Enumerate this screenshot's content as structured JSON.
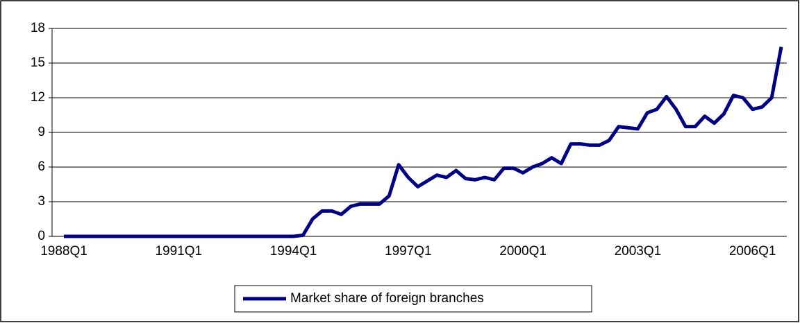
{
  "chart_data": {
    "type": "line",
    "categories": [
      "1988Q1",
      null,
      null,
      null,
      null,
      null,
      null,
      null,
      null,
      null,
      null,
      null,
      "1991Q1",
      null,
      null,
      null,
      null,
      null,
      null,
      null,
      null,
      null,
      null,
      null,
      "1994Q1",
      null,
      null,
      null,
      null,
      null,
      null,
      null,
      null,
      null,
      null,
      null,
      "1997Q1",
      null,
      null,
      null,
      null,
      null,
      null,
      null,
      null,
      null,
      null,
      null,
      "2000Q1",
      null,
      null,
      null,
      null,
      null,
      null,
      null,
      null,
      null,
      null,
      null,
      "2003Q1",
      null,
      null,
      null,
      null,
      null,
      null,
      null,
      null,
      null,
      null,
      null,
      "2006Q1",
      null,
      null,
      null
    ],
    "series": [
      {
        "name": "Market share of foreign branches",
        "color": "#000080",
        "values": [
          0,
          0,
          0,
          0,
          0,
          0,
          0,
          0,
          0,
          0,
          0,
          0,
          0,
          0,
          0,
          0,
          0,
          0,
          0,
          0,
          0,
          0,
          0,
          0,
          0,
          0.1,
          1.5,
          2.2,
          2.2,
          1.9,
          2.6,
          2.8,
          2.8,
          2.8,
          3.5,
          6.2,
          5.1,
          4.3,
          4.8,
          5.3,
          5.1,
          5.7,
          5.0,
          4.9,
          5.1,
          4.9,
          5.9,
          5.9,
          5.5,
          6.0,
          6.3,
          6.8,
          6.3,
          8.0,
          8.0,
          7.9,
          7.9,
          8.3,
          9.5,
          9.4,
          9.3,
          10.7,
          11.0,
          12.1,
          11.0,
          9.5,
          9.5,
          10.4,
          9.8,
          10.6,
          12.2,
          12.0,
          11.0,
          11.2,
          12.0,
          16.4
        ]
      }
    ],
    "ylim": [
      0,
      18
    ],
    "yticks": [
      0,
      3,
      6,
      9,
      12,
      15,
      18
    ],
    "grid": true,
    "legend": "bottom"
  }
}
